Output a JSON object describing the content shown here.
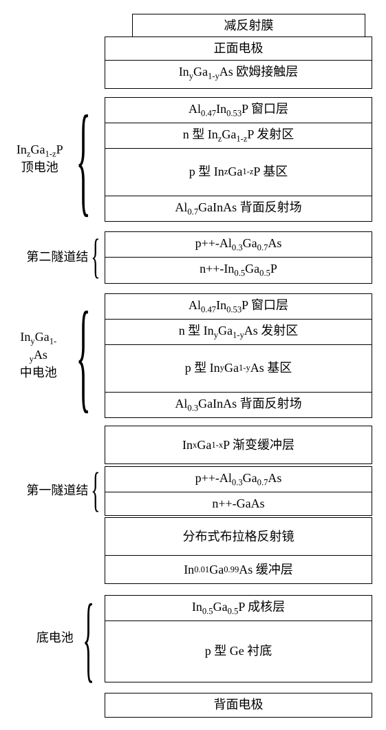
{
  "top": {
    "arc": "减反射膜",
    "front_electrode": "正面电极",
    "ohmic": "In<sub>y</sub>Ga<sub>1-y</sub>As 欧姆接触层"
  },
  "top_cell": {
    "label_line1": "In<sub>z</sub>Ga<sub>1-z</sub>P",
    "label_line2": "顶电池",
    "window": "Al<sub>0.47</sub>In<sub>0.53</sub>P 窗口层",
    "emitter": "n 型 In<sub>z</sub>Ga<sub>1-z</sub>P 发射区",
    "base": "p 型 In<sub>z</sub>Ga<sub>1-z</sub>P 基区",
    "bsf": "Al<sub>0.7</sub>GaInAs 背面反射场"
  },
  "tj2": {
    "label": "第二隧道结",
    "p": "p++-Al<sub>0.3</sub>Ga<sub>0.7</sub>As",
    "n": "n++-In<sub>0.5</sub>Ga<sub>0.5</sub>P"
  },
  "mid_cell": {
    "label_line1": "In<sub>y</sub>Ga<sub>1-y</sub>As",
    "label_line2": "中电池",
    "window": "Al<sub>0.47</sub>In<sub>0.53</sub>P 窗口层",
    "emitter": "n 型 In<sub>y</sub>Ga<sub>1-y</sub>As 发射区",
    "base": "p 型 In<sub>y</sub>Ga<sub>1-y</sub>As 基区",
    "bsf": "Al<sub>0.3</sub>GaInAs 背面反射场"
  },
  "graded": "In<sub>x</sub>Ga<sub>1-x</sub>P 渐变缓冲层",
  "tj1": {
    "label": "第一隧道结",
    "p": "p++-Al<sub>0.3</sub>Ga<sub>0.7</sub>As",
    "n": "n++-GaAs"
  },
  "dbr": "分布式布拉格反射镜",
  "buffer": "In<sub>0.01</sub>Ga<sub>0.99</sub>As 缓冲层",
  "bottom_cell": {
    "label": "底电池",
    "nucleation": "In<sub>0.5</sub>Ga<sub>0.5</sub>P 成核层",
    "substrate": "p 型 Ge 衬底"
  },
  "back_electrode": "背面电极",
  "heights": {
    "thin": 30,
    "med": 42,
    "thick": 70,
    "vthick": 56
  },
  "colors": {
    "border": "#000000",
    "bg": "#ffffff",
    "text": "#000000"
  },
  "font": {
    "family": "SimSun / Times New Roman",
    "size_pt": 14
  }
}
